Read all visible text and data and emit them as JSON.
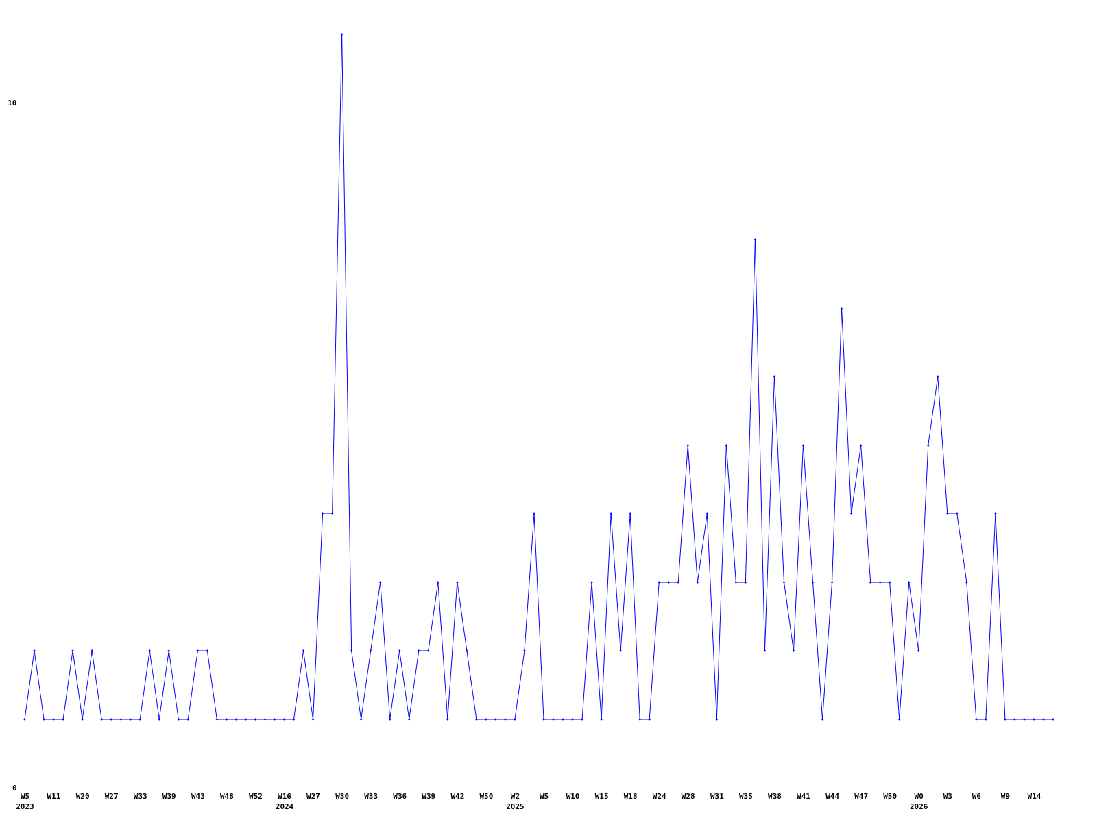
{
  "chart_data": {
    "type": "line",
    "categories": [
      "W5\n2023",
      null,
      null,
      "W11",
      null,
      null,
      "W20",
      null,
      null,
      "W27",
      null,
      null,
      "W33",
      null,
      null,
      "W39",
      null,
      null,
      "W43",
      null,
      null,
      "W48",
      null,
      null,
      "W52",
      null,
      null,
      "W16\n2024",
      null,
      null,
      "W27",
      null,
      null,
      "W30",
      null,
      null,
      "W33",
      null,
      null,
      "W36",
      null,
      null,
      "W39",
      null,
      null,
      "W42",
      null,
      null,
      "W50",
      null,
      null,
      "W2\n2025",
      null,
      null,
      "W5",
      null,
      null,
      "W10",
      null,
      null,
      "W15",
      null,
      null,
      "W18",
      null,
      null,
      "W24",
      null,
      null,
      "W28",
      null,
      null,
      "W31",
      null,
      null,
      "W35",
      null,
      null,
      "W38",
      null,
      null,
      "W41",
      null,
      null,
      "W44",
      null,
      null,
      "W47",
      null,
      null,
      "W50",
      null,
      null,
      "W0\n2026",
      null,
      null,
      "W3",
      null,
      null,
      "W6",
      null,
      null,
      "W9",
      null,
      null,
      "W14",
      null,
      null
    ],
    "series": [
      {
        "color": "#0000ff",
        "values": [
          1,
          2,
          1,
          1,
          1,
          2,
          1,
          2,
          1,
          1,
          1,
          1,
          1,
          2,
          1,
          2,
          1,
          1,
          2,
          2,
          1,
          1,
          1,
          1,
          1,
          1,
          1,
          1,
          1,
          2,
          1,
          4,
          4,
          11,
          2,
          1,
          2,
          3,
          1,
          2,
          1,
          2,
          2,
          3,
          1,
          3,
          2,
          1,
          1,
          1,
          1,
          1,
          2,
          4,
          1,
          1,
          1,
          1,
          1,
          3,
          1,
          4,
          2,
          4,
          1,
          1,
          3,
          3,
          3,
          5,
          3,
          4,
          1,
          5,
          3,
          3,
          8,
          2,
          6,
          3,
          2,
          5,
          3,
          1,
          3,
          7,
          4,
          5,
          3,
          3,
          3,
          1,
          3,
          2,
          5,
          6,
          4,
          4,
          3,
          1,
          1,
          4,
          1,
          1,
          1,
          1,
          1,
          1
        ]
      }
    ],
    "ylim": [
      0,
      11
    ],
    "yticks": [
      0,
      10
    ],
    "grid": "y",
    "marker": "diamond",
    "line_style": "solid"
  }
}
